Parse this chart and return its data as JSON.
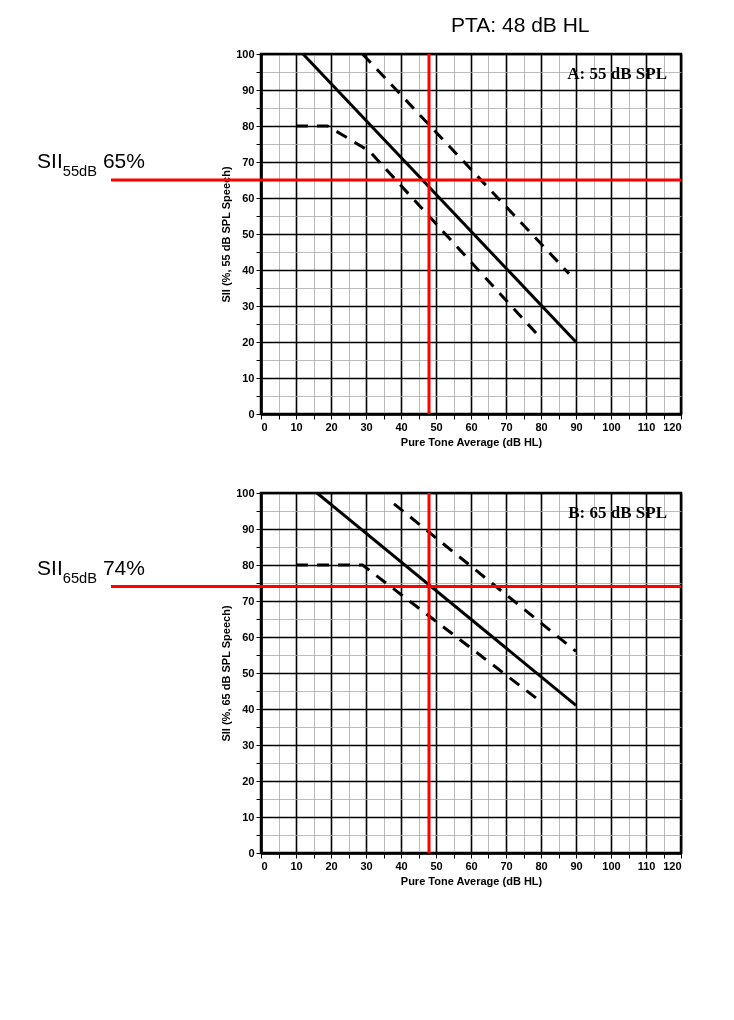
{
  "chart_data": [
    {
      "type": "line",
      "title": "A: 55 dB SPL",
      "xlabel": "Pure Tone Average (dB HL)",
      "ylabel": "SII (%, 55 dB SPL Speech)",
      "xlim": [
        0,
        120
      ],
      "ylim": [
        0,
        100
      ],
      "xticks": [
        0,
        {
          "value": 5,
          "label": null
        },
        10,
        {
          "value": 15,
          "label": null
        },
        20,
        {
          "value": 25,
          "label": null
        },
        30,
        {
          "value": 35,
          "label": null
        },
        40,
        {
          "value": 45,
          "label": null
        },
        50,
        {
          "value": 55,
          "label": null
        },
        60,
        {
          "value": 65,
          "label": null
        },
        70,
        {
          "value": 75,
          "label": null
        },
        80,
        {
          "value": 85,
          "label": null
        },
        90,
        {
          "value": 95,
          "label": null
        },
        100,
        {
          "value": 105,
          "label": null
        },
        110,
        {
          "value": 115,
          "label": null
        },
        120
      ],
      "yticks": [
        0,
        {
          "value": 5,
          "label": null
        },
        10,
        {
          "value": 15,
          "label": null
        },
        20,
        {
          "value": 25,
          "label": null
        },
        30,
        {
          "value": 35,
          "label": null
        },
        40,
        {
          "value": 45,
          "label": null
        },
        50,
        {
          "value": 55,
          "label": null
        },
        60,
        {
          "value": 65,
          "label": null
        },
        70,
        {
          "value": 75,
          "label": null
        },
        80,
        {
          "value": 85,
          "label": null
        },
        90,
        {
          "value": 95,
          "label": null
        },
        100
      ],
      "grid": true,
      "series": [
        {
          "color": "#000000",
          "line_style": "solid",
          "x": [
            12,
            90
          ],
          "values": [
            100,
            20
          ]
        },
        {
          "color": "#000000",
          "line_style": "dashed",
          "x": [
            29,
            88
          ],
          "values": [
            100,
            39
          ]
        },
        {
          "color": "#000000",
          "line_style": "dashed",
          "x": [
            10,
            19,
            31,
            80
          ],
          "values": [
            80,
            80,
            73,
            21
          ]
        }
      ],
      "ref_lines": [
        {
          "axis": "x",
          "value": 48,
          "label": "PTA: 48 dB HL",
          "color": "#ff0000"
        },
        {
          "axis": "y",
          "value": 65,
          "label": "SII$_{55dB}$ 65%",
          "color": "#ff0000"
        }
      ]
    },
    {
      "type": "line",
      "title": "B: 65 dB SPL",
      "xlabel": "Pure Tone Average (dB HL)",
      "ylabel": "SII (%, 65 dB SPL Speech)",
      "xlim": [
        0,
        120
      ],
      "ylim": [
        0,
        100
      ],
      "xticks": [
        0,
        {
          "value": 5,
          "label": null
        },
        10,
        {
          "value": 15,
          "label": null
        },
        20,
        {
          "value": 25,
          "label": null
        },
        30,
        {
          "value": 35,
          "label": null
        },
        40,
        {
          "value": 45,
          "label": null
        },
        50,
        {
          "value": 55,
          "label": null
        },
        60,
        {
          "value": 65,
          "label": null
        },
        70,
        {
          "value": 75,
          "label": null
        },
        80,
        {
          "value": 85,
          "label": null
        },
        90,
        {
          "value": 95,
          "label": null
        },
        100,
        {
          "value": 105,
          "label": null
        },
        110,
        {
          "value": 115,
          "label": null
        },
        120
      ],
      "yticks": [
        0,
        {
          "value": 5,
          "label": null
        },
        10,
        {
          "value": 15,
          "label": null
        },
        20,
        {
          "value": 25,
          "label": null
        },
        30,
        {
          "value": 35,
          "label": null
        },
        40,
        {
          "value": 45,
          "label": null
        },
        50,
        {
          "value": 55,
          "label": null
        },
        60,
        {
          "value": 65,
          "label": null
        },
        70,
        {
          "value": 75,
          "label": null
        },
        80,
        {
          "value": 85,
          "label": null
        },
        90,
        {
          "value": 95,
          "label": null
        },
        100
      ],
      "grid": true,
      "series": [
        {
          "color": "#000000",
          "line_style": "solid",
          "x": [
            16,
            90
          ],
          "values": [
            100,
            41
          ]
        },
        {
          "color": "#000000",
          "line_style": "dashed",
          "x": [
            38,
            90
          ],
          "values": [
            97,
            56
          ]
        },
        {
          "color": "#000000",
          "line_style": "dashed",
          "x": [
            10,
            29,
            80
          ],
          "values": [
            80,
            80,
            42
          ]
        }
      ],
      "ref_lines": [
        {
          "axis": "x",
          "value": 48,
          "color": "#ff0000"
        },
        {
          "axis": "y",
          "value": 74,
          "label": "SII$_{65dB}$ 74%",
          "color": "#ff0000"
        }
      ]
    }
  ]
}
